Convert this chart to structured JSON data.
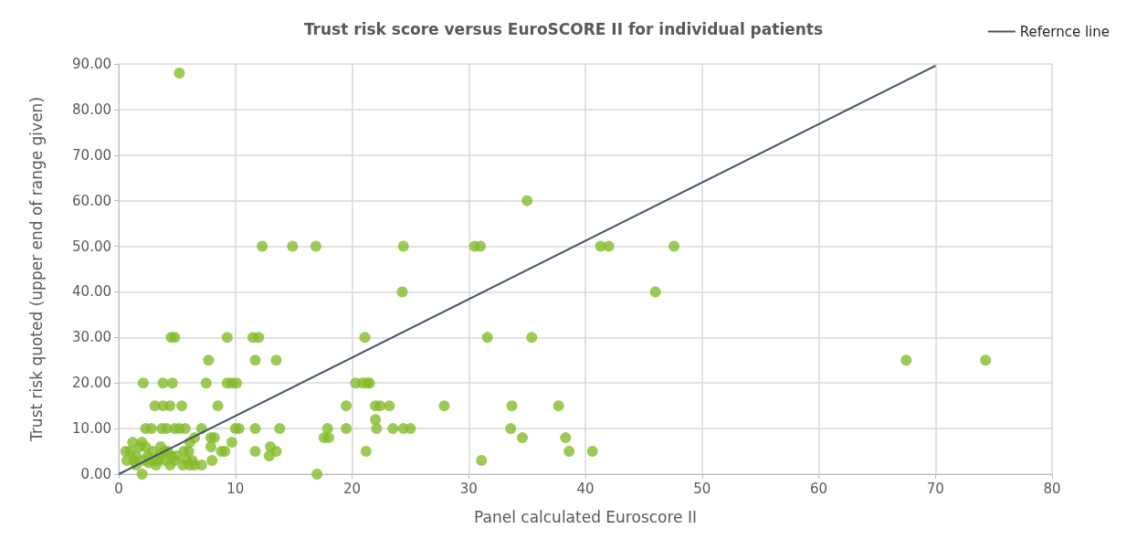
{
  "chart_data": {
    "type": "scatter",
    "title": "Trust risk score versus EuroSCORE II for individual patients",
    "xlabel": "Panel calculated Euroscore II",
    "ylabel": "Trust risk quoted (upper end of range given)",
    "xlim": [
      0,
      80
    ],
    "xticks": [
      0,
      10,
      20,
      30,
      40,
      50,
      60,
      70,
      80
    ],
    "ylim": [
      0,
      90
    ],
    "yticks": [
      {
        "value": 0,
        "label": "0.00"
      },
      {
        "value": 10,
        "label": "10.00"
      },
      {
        "value": 20,
        "label": "20.00"
      },
      {
        "value": 30,
        "label": "30.00"
      },
      {
        "value": 40,
        "label": "40.00"
      },
      {
        "value": 50,
        "label": "50.00"
      },
      {
        "value": 60,
        "label": "60.00"
      },
      {
        "value": 70,
        "label": "70.00"
      },
      {
        "value": 80,
        "label": "80.00"
      },
      {
        "value": 90,
        "label": "90.00"
      }
    ],
    "grid": true,
    "legend": "top right",
    "marker": "circle",
    "series": [
      {
        "color": "#84bc2a",
        "x": [
          5.2,
          67.5,
          74.3,
          35,
          24.4,
          30.5,
          31,
          41.3,
          42,
          47.6,
          12.3,
          14.9,
          16.9,
          24.3,
          46,
          4.5,
          4.8,
          9.3,
          11.5,
          12,
          21.1,
          31.6,
          35.4,
          7.7,
          11.7,
          13.5,
          2.1,
          3.8,
          4.6,
          7.5,
          9.3,
          9.7,
          10.1,
          20.3,
          20.9,
          21.3,
          21.5,
          3.1,
          3.8,
          4.4,
          5.4,
          8.5,
          19.5,
          22,
          22.4,
          23.2,
          27.9,
          33.7,
          37.7,
          22,
          2.3,
          2.8,
          3.7,
          4.1,
          4.8,
          5.2,
          5.7,
          7.1,
          10,
          10.3,
          11.7,
          13.8,
          17.9,
          19.5,
          22.1,
          23.5,
          24.4,
          25,
          33.6,
          17.6,
          18,
          38.3,
          34.6,
          7.9,
          8.2,
          6.5,
          9.7,
          6.1,
          2,
          1.2,
          13,
          7.9,
          8.8,
          9.1,
          11.7,
          13.5,
          21.2,
          38.6,
          40.6,
          5.6,
          1,
          0.6,
          2.9,
          12.9,
          0.7,
          31.1,
          8,
          5.8,
          3,
          5.5,
          6.1,
          7.1,
          4.4,
          3.2,
          1.5,
          2,
          17,
          1.5,
          2.5,
          3.5,
          4.5,
          1.8,
          2.3,
          3.6,
          4.8,
          5,
          6.3,
          6.5,
          1.3,
          2.6,
          3.9,
          4.2,
          2.2,
          3.4,
          4,
          6
        ],
        "values": [
          88,
          25,
          25,
          60,
          50,
          50,
          50,
          50,
          50,
          50,
          50,
          50,
          50,
          40,
          40,
          30,
          30,
          30,
          30,
          30,
          30,
          30,
          30,
          25,
          25,
          25,
          20,
          20,
          20,
          20,
          20,
          20,
          20,
          20,
          20,
          20,
          20,
          15,
          15,
          15,
          15,
          15,
          15,
          15,
          15,
          15,
          15,
          15,
          15,
          12,
          10,
          10,
          10,
          10,
          10,
          10,
          10,
          10,
          10,
          10,
          10,
          10,
          10,
          10,
          10,
          10,
          10,
          10,
          10,
          8,
          8,
          8,
          8,
          8,
          8,
          8,
          7,
          7,
          7,
          7,
          6,
          6,
          5,
          5,
          5,
          5,
          5,
          5,
          5,
          5,
          5,
          5,
          5,
          4,
          3,
          3,
          3,
          3,
          3,
          2,
          2,
          2,
          2,
          2,
          2,
          0,
          0,
          4,
          4,
          4,
          4,
          6,
          6,
          6,
          3,
          4,
          3,
          2,
          3,
          2.5,
          5,
          5,
          3,
          3,
          3,
          5
        ]
      },
      {
        "type": "line",
        "name": "Refernce line",
        "color": "#44546a",
        "marker": "none",
        "x": [
          0,
          70
        ],
        "values": [
          0,
          89.6
        ]
      }
    ]
  }
}
